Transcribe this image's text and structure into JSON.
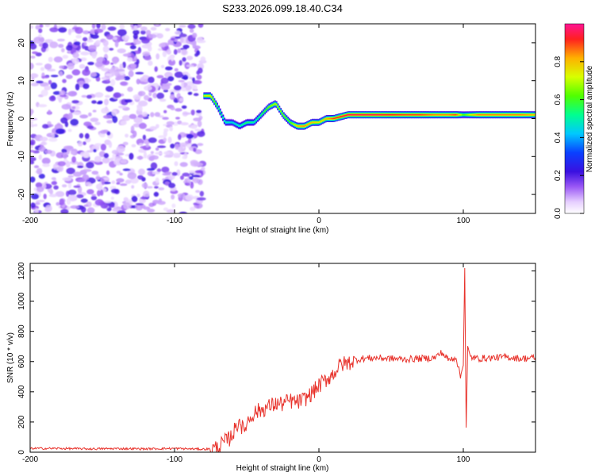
{
  "chart_data": [
    {
      "type": "heatmap",
      "title": "S233.2026.099.18.40.C34",
      "xlabel": "Height of straight line (km)",
      "ylabel": "Frequency (Hz)",
      "xlim": [
        -200,
        150
      ],
      "ylim": [
        -25,
        25
      ],
      "xticks": [
        -200,
        -100,
        0,
        100
      ],
      "xtick_labels": [
        "-200",
        "-100",
        "0",
        "100"
      ],
      "yticks": [
        -20,
        -10,
        0,
        10,
        20
      ],
      "ytick_labels": [
        "-20",
        "-10",
        "0",
        "10",
        "20"
      ],
      "noise_region_x": [
        -200,
        -80
      ],
      "ridge": {
        "x": [
          -80,
          -75,
          -70,
          -65,
          -60,
          -55,
          -50,
          -45,
          -40,
          -35,
          -30,
          -25,
          -20,
          -15,
          -10,
          -5,
          0,
          5,
          10,
          20,
          30,
          40,
          50,
          60,
          70,
          80,
          90,
          95,
          100,
          110,
          120,
          130,
          140,
          150
        ],
        "y": [
          6,
          6,
          3,
          -1,
          -1,
          -2,
          -1,
          -1,
          1,
          3,
          4,
          1,
          -1,
          -2,
          -2,
          -1,
          -1,
          0,
          0,
          1,
          1,
          1,
          1,
          1,
          1,
          1,
          1,
          1,
          1,
          1,
          1,
          1,
          1,
          1
        ],
        "intensity": [
          0.7,
          0.75,
          0.55,
          0.5,
          0.45,
          0.5,
          0.55,
          0.5,
          0.55,
          0.65,
          0.7,
          0.65,
          0.6,
          0.8,
          0.85,
          0.8,
          0.75,
          0.8,
          0.9,
          0.95,
          0.95,
          0.95,
          0.92,
          0.9,
          0.9,
          0.85,
          0.85,
          0.9,
          0.6,
          0.85,
          0.85,
          0.85,
          0.85,
          0.8
        ]
      },
      "colorbar": {
        "label": "Normalized spectral amplitude",
        "range": [
          0.0,
          1.0
        ],
        "ticks": [
          0.0,
          0.2,
          0.4,
          0.6,
          0.8
        ],
        "tick_labels": [
          "0.0",
          "0.2",
          "0.4",
          "0.6",
          "0.8"
        ]
      }
    },
    {
      "type": "line",
      "xlabel": "Height of straight line (km)",
      "ylabel": "SNR (10 * v/v)",
      "xlim": [
        -200,
        150
      ],
      "ylim": [
        0,
        1250
      ],
      "xticks": [
        -200,
        -100,
        0,
        100
      ],
      "xtick_labels": [
        "-200",
        "-100",
        "0",
        "100"
      ],
      "yticks": [
        0,
        200,
        400,
        600,
        800,
        1000,
        1200
      ],
      "ytick_labels": [
        "0",
        "200",
        "400",
        "600",
        "800",
        "1000",
        "1200"
      ],
      "color": "#e8332c",
      "series": [
        {
          "name": "SNR",
          "x": [
            -200,
            -180,
            -160,
            -140,
            -120,
            -100,
            -90,
            -80,
            -75,
            -70,
            -65,
            -62,
            -58,
            -55,
            -52,
            -50,
            -45,
            -40,
            -35,
            -30,
            -25,
            -20,
            -15,
            -10,
            -5,
            0,
            5,
            10,
            15,
            20,
            25,
            30,
            40,
            50,
            60,
            70,
            80,
            85,
            90,
            95,
            98,
            100,
            101,
            102,
            103,
            105,
            110,
            120,
            130,
            140,
            150
          ],
          "y": [
            25,
            25,
            22,
            24,
            22,
            25,
            22,
            20,
            22,
            30,
            70,
            90,
            150,
            220,
            130,
            200,
            260,
            280,
            300,
            320,
            320,
            340,
            330,
            350,
            390,
            440,
            480,
            520,
            580,
            590,
            610,
            620,
            625,
            620,
            615,
            620,
            625,
            660,
            610,
            630,
            500,
            580,
            1220,
            160,
            700,
            630,
            620,
            625,
            630,
            620,
            625
          ]
        }
      ]
    }
  ]
}
